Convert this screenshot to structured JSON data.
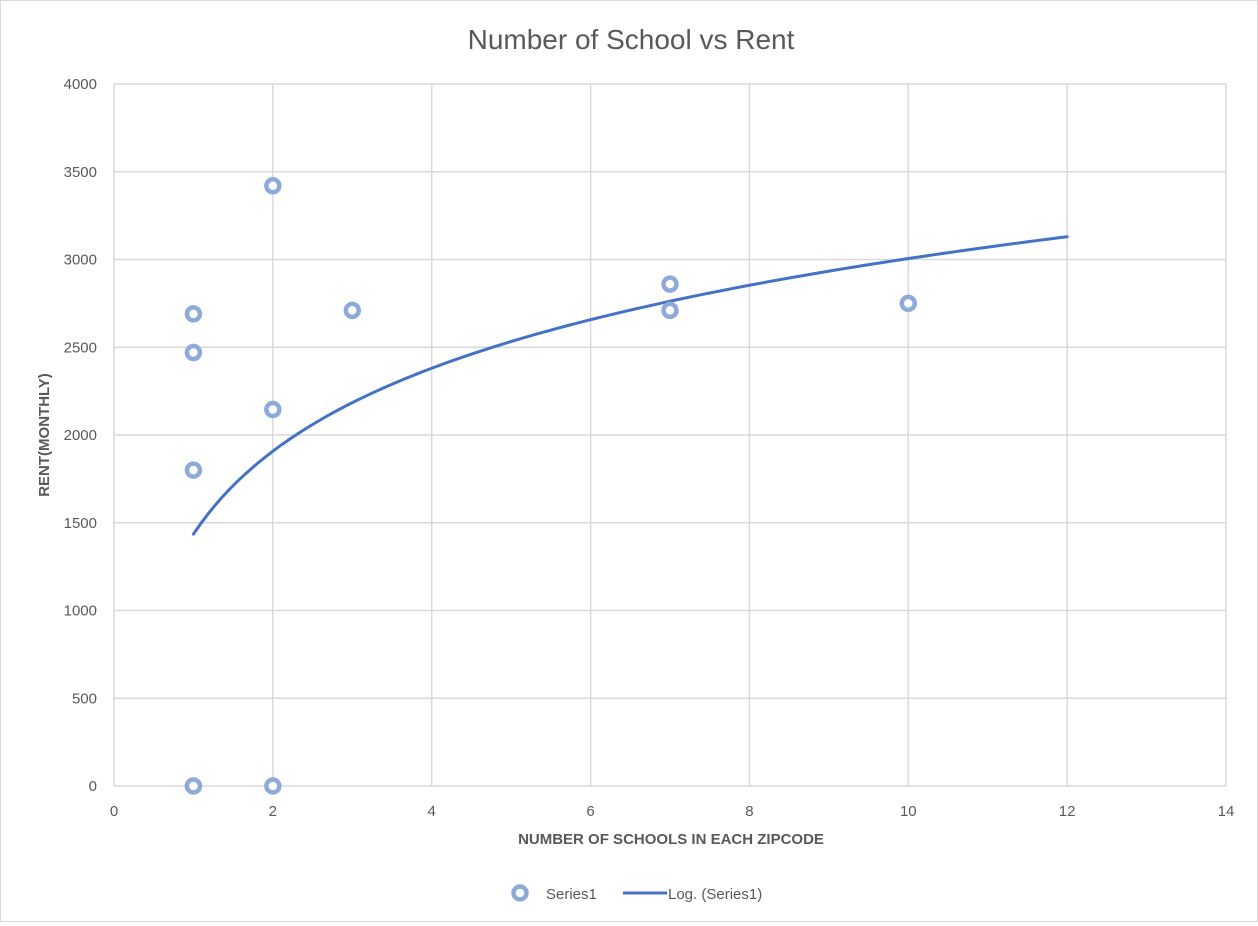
{
  "chart_data": {
    "type": "scatter",
    "title": "Number of School vs Rent",
    "xlabel": "NUMBER OF SCHOOLS IN EACH ZIPCODE",
    "ylabel": "RENT(MONTHLY)",
    "xlim": [
      0,
      14
    ],
    "ylim": [
      0,
      4000
    ],
    "xticks": [
      0,
      2,
      4,
      6,
      8,
      10,
      12,
      14
    ],
    "yticks": [
      0,
      500,
      1000,
      1500,
      2000,
      2500,
      3000,
      3500,
      4000
    ],
    "grid": true,
    "legend_position": "bottom",
    "colors": {
      "marker": "#8eaadb",
      "trendline": "#4472c4",
      "grid": "#d9d9d9",
      "text": "#595959"
    },
    "series": [
      {
        "name": "Series1",
        "points": [
          {
            "x": 1,
            "y": 2690
          },
          {
            "x": 1,
            "y": 2470
          },
          {
            "x": 1,
            "y": 1800
          },
          {
            "x": 1,
            "y": 0
          },
          {
            "x": 1,
            "y": 0
          },
          {
            "x": 2,
            "y": 3420
          },
          {
            "x": 2,
            "y": 2145
          },
          {
            "x": 2,
            "y": 0
          },
          {
            "x": 3,
            "y": 2710
          },
          {
            "x": 7,
            "y": 2860
          },
          {
            "x": 7,
            "y": 2710
          },
          {
            "x": 10,
            "y": 2750
          }
        ]
      }
    ],
    "trendline": {
      "name": "Log. (Series1)",
      "type": "logarithmic",
      "x_range": [
        1,
        12
      ],
      "intercept": 1435,
      "slope": 682
    }
  }
}
